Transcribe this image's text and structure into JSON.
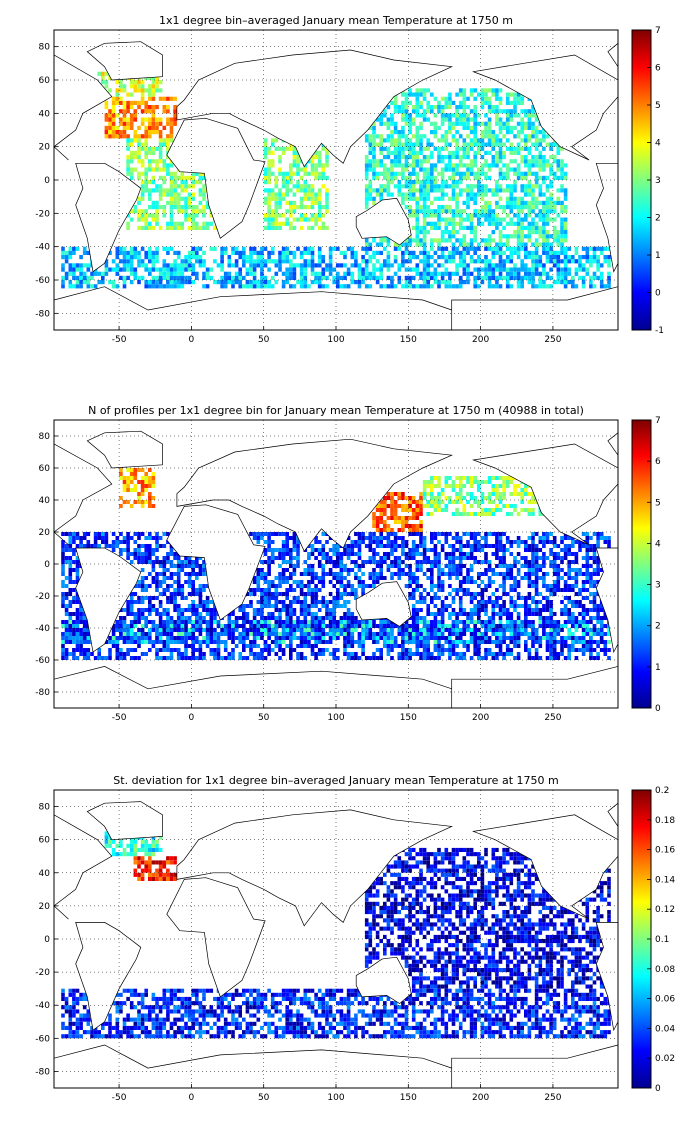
{
  "chart_data": [
    {
      "type": "heatmap",
      "title": "1x1 degree bin–averaged January mean Temperature at 1750 m",
      "xlim": [
        -95,
        295
      ],
      "ylim": [
        -90,
        90
      ],
      "x_ticks": [
        -50,
        0,
        50,
        100,
        150,
        200,
        250
      ],
      "y_ticks": [
        80,
        60,
        40,
        20,
        0,
        -20,
        -40,
        -60,
        -80
      ],
      "colorbar": {
        "range": [
          -1,
          7
        ],
        "ticks": [
          7,
          6,
          5,
          4,
          3,
          2,
          1,
          0,
          -1
        ]
      },
      "colormap": "jet",
      "grid": true,
      "regions": [
        {
          "lon": [
            -60,
            -10
          ],
          "lat": [
            25,
            50
          ],
          "value": 4.8
        },
        {
          "lon": [
            -65,
            -20
          ],
          "lat": [
            50,
            65
          ],
          "value": 3.6
        },
        {
          "lon": [
            -45,
            20
          ],
          "lat": [
            -30,
            25
          ],
          "value": 3.0
        },
        {
          "lon": [
            50,
            95
          ],
          "lat": [
            -30,
            25
          ],
          "value": 3.0
        },
        {
          "lon": [
            120,
            260
          ],
          "lat": [
            -40,
            55
          ],
          "value": 2.3
        },
        {
          "lon": [
            -90,
            290
          ],
          "lat": [
            -65,
            -40
          ],
          "value": 1.5
        }
      ]
    },
    {
      "type": "heatmap",
      "title": "N of profiles per 1x1 degree bin for January mean Temperature at 1750 m (40988 in total)",
      "xlim": [
        -95,
        295
      ],
      "ylim": [
        -90,
        90
      ],
      "x_ticks": [
        -50,
        0,
        50,
        100,
        150,
        200,
        250
      ],
      "y_ticks": [
        80,
        60,
        40,
        20,
        0,
        -20,
        -40,
        -60,
        -80
      ],
      "colorbar": {
        "range": [
          0,
          7
        ],
        "ticks": [
          7,
          6,
          5,
          4,
          3,
          2,
          1,
          0
        ]
      },
      "colormap": "jet",
      "grid": true,
      "regions": [
        {
          "lon": [
            -50,
            -25
          ],
          "lat": [
            35,
            60
          ],
          "value": 5
        },
        {
          "lon": [
            125,
            160
          ],
          "lat": [
            20,
            45
          ],
          "value": 5.5
        },
        {
          "lon": [
            160,
            250
          ],
          "lat": [
            30,
            55
          ],
          "value": 3.5
        },
        {
          "lon": [
            -90,
            290
          ],
          "lat": [
            -50,
            -35
          ],
          "value": 2.5
        },
        {
          "lon": [
            -90,
            290
          ],
          "lat": [
            -60,
            20
          ],
          "value": 1.2
        }
      ]
    },
    {
      "type": "heatmap",
      "title": "St. deviation for 1x1 degree bin–averaged January mean Temperature at 1750 m",
      "xlim": [
        -95,
        295
      ],
      "ylim": [
        -90,
        90
      ],
      "x_ticks": [
        -50,
        0,
        50,
        100,
        150,
        200,
        250
      ],
      "y_ticks": [
        80,
        60,
        40,
        20,
        0,
        -20,
        -40,
        -60,
        -80
      ],
      "colorbar": {
        "range": [
          0,
          0.2
        ],
        "ticks": [
          0.2,
          0.18,
          0.16,
          0.14,
          0.12,
          0.1,
          0.08,
          0.06,
          0.04,
          0.02,
          0
        ]
      },
      "colormap": "jet",
      "grid": true,
      "regions": [
        {
          "lon": [
            -40,
            -10
          ],
          "lat": [
            35,
            50
          ],
          "value": 0.17
        },
        {
          "lon": [
            -60,
            -20
          ],
          "lat": [
            50,
            65
          ],
          "value": 0.08
        },
        {
          "lon": [
            -90,
            290
          ],
          "lat": [
            -60,
            -30
          ],
          "value": 0.03
        },
        {
          "lon": [
            120,
            290
          ],
          "lat": [
            -30,
            55
          ],
          "value": 0.02
        }
      ]
    }
  ]
}
